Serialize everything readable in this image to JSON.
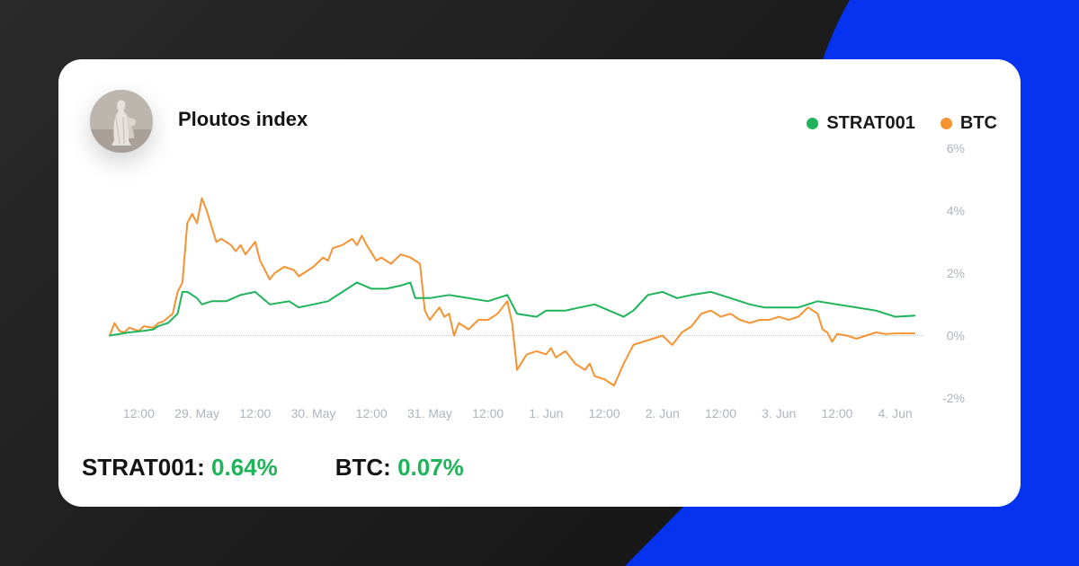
{
  "colors": {
    "strat": "#1fb45a",
    "btc": "#f59332",
    "axis_text": "#aeb4bc",
    "accent_blue": "#0533f0",
    "zero_line": "#c8ccd1"
  },
  "header": {
    "title": "Ploutos index",
    "avatar_icon": "statue-avatar-icon"
  },
  "legend": [
    {
      "label": "STRAT001",
      "color": "#1fb45a"
    },
    {
      "label": "BTC",
      "color": "#f59332"
    }
  ],
  "stats": [
    {
      "label": "STRAT001:",
      "value": "0.64%"
    },
    {
      "label": "BTC:",
      "value": "0.07%"
    }
  ],
  "chart_data": {
    "type": "line",
    "x_tick_labels": [
      "12:00",
      "29. May",
      "12:00",
      "30. May",
      "12:00",
      "31. May",
      "12:00",
      "1. Jun",
      "12:00",
      "2. Jun",
      "12:00",
      "3. Jun",
      "12:00",
      "4. Jun"
    ],
    "y_tick_labels": [
      "6%",
      "4%",
      "2%",
      "0%",
      "-2%"
    ],
    "y_ticks": [
      6,
      4,
      2,
      0,
      -2
    ],
    "ylim": [
      -2,
      6
    ],
    "x_unit": "hours since start",
    "xlim": [
      0,
      168
    ],
    "x_ticks": [
      6,
      18,
      30,
      42,
      54,
      66,
      78,
      90,
      102,
      114,
      126,
      138,
      150,
      162
    ],
    "zero_line": true,
    "series": [
      {
        "name": "STRAT001",
        "color": "#1fb45a",
        "x": [
          0,
          4,
          7,
          9,
          10,
          12,
          14,
          15,
          16,
          18,
          19,
          21,
          24,
          27,
          30,
          33,
          37,
          39,
          42,
          45,
          48,
          51,
          54,
          57,
          60,
          62,
          63,
          66,
          70,
          74,
          78,
          82,
          84,
          88,
          90,
          94,
          97,
          100,
          103,
          106,
          108,
          111,
          114,
          117,
          120,
          124,
          128,
          132,
          135,
          138,
          142,
          146,
          150,
          154,
          158,
          162,
          166
        ],
        "y": [
          0,
          0.1,
          0.15,
          0.2,
          0.3,
          0.4,
          0.7,
          1.4,
          1.4,
          1.2,
          1.0,
          1.1,
          1.1,
          1.3,
          1.4,
          1.0,
          1.1,
          0.9,
          1.0,
          1.1,
          1.4,
          1.7,
          1.5,
          1.5,
          1.6,
          1.7,
          1.2,
          1.2,
          1.3,
          1.2,
          1.1,
          1.3,
          0.7,
          0.6,
          0.8,
          0.8,
          0.9,
          1.0,
          0.8,
          0.6,
          0.8,
          1.3,
          1.4,
          1.2,
          1.3,
          1.4,
          1.2,
          1.0,
          0.9,
          0.9,
          0.9,
          1.1,
          1.0,
          0.9,
          0.8,
          0.6,
          0.64
        ]
      },
      {
        "name": "BTC",
        "color": "#f59332",
        "x": [
          0,
          1,
          2,
          3,
          4,
          6,
          7,
          9,
          10,
          11,
          13,
          14,
          15,
          16,
          17,
          18,
          19,
          20,
          22,
          23,
          25,
          26,
          27,
          28,
          29,
          30,
          31,
          33,
          34,
          36,
          38,
          39,
          42,
          44,
          45,
          46,
          48,
          50,
          51,
          52,
          53,
          55,
          56,
          58,
          60,
          62,
          63,
          64,
          65,
          66,
          68,
          69,
          70,
          71,
          72,
          74,
          76,
          78,
          80,
          81,
          82,
          83,
          84,
          86,
          88,
          90,
          91,
          92,
          94,
          96,
          98,
          99,
          100,
          102,
          104,
          106,
          108,
          110,
          112,
          114,
          116,
          118,
          120,
          122,
          124,
          126,
          128,
          130,
          132,
          134,
          136,
          138,
          140,
          142,
          144,
          146,
          147,
          148,
          149,
          150,
          152,
          154,
          156,
          158,
          160,
          162,
          164,
          166
        ],
        "y": [
          0,
          0.4,
          0.15,
          0.1,
          0.25,
          0.15,
          0.3,
          0.25,
          0.4,
          0.45,
          0.7,
          1.4,
          1.7,
          3.6,
          3.9,
          3.6,
          4.4,
          4.0,
          3.0,
          3.1,
          2.9,
          2.7,
          2.9,
          2.6,
          2.8,
          3.0,
          2.4,
          1.8,
          2.0,
          2.2,
          2.1,
          1.9,
          2.2,
          2.5,
          2.4,
          2.8,
          2.9,
          3.1,
          2.9,
          3.2,
          2.9,
          2.4,
          2.5,
          2.3,
          2.6,
          2.5,
          2.4,
          2.3,
          0.8,
          0.5,
          0.9,
          0.6,
          0.7,
          0.0,
          0.4,
          0.2,
          0.5,
          0.5,
          0.7,
          0.9,
          1.1,
          0.4,
          -1.1,
          -0.6,
          -0.5,
          -0.6,
          -0.4,
          -0.7,
          -0.5,
          -0.9,
          -1.1,
          -0.9,
          -1.3,
          -1.4,
          -1.6,
          -0.9,
          -0.3,
          -0.2,
          -0.1,
          0.0,
          -0.3,
          0.1,
          0.3,
          0.7,
          0.8,
          0.6,
          0.7,
          0.5,
          0.4,
          0.5,
          0.5,
          0.6,
          0.5,
          0.6,
          0.9,
          0.7,
          0.2,
          0.1,
          -0.2,
          0.05,
          0.0,
          -0.1,
          0.0,
          0.1,
          0.05,
          0.07,
          0.07,
          0.07
        ]
      }
    ]
  }
}
